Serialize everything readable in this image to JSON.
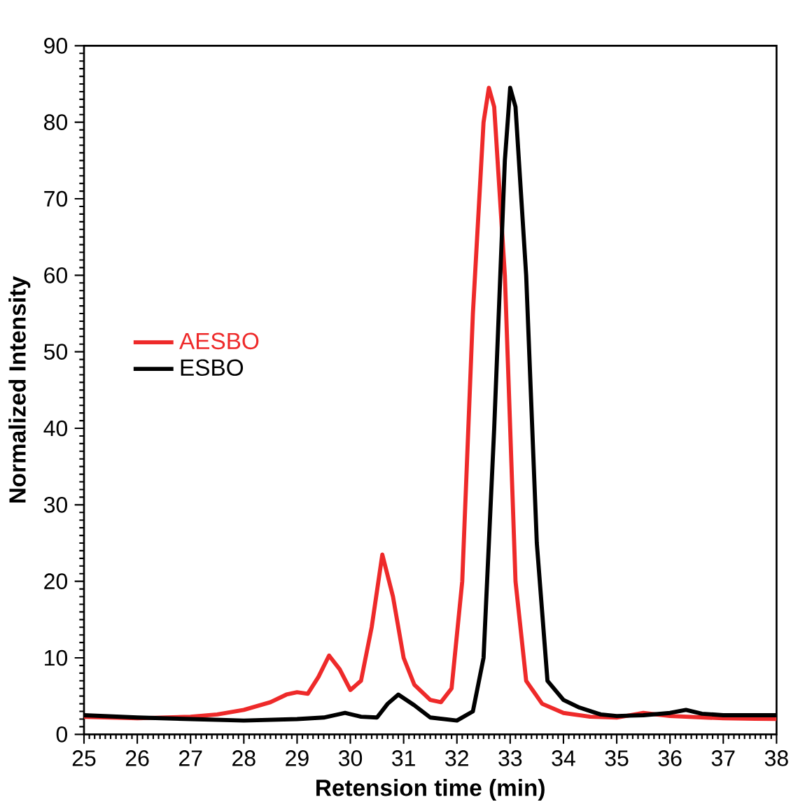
{
  "chart_data": {
    "type": "line",
    "xlabel": "Retension time (min)",
    "ylabel": "Normalized Intensity",
    "xlim": [
      25,
      38
    ],
    "xticks": [
      25,
      26,
      27,
      28,
      29,
      30,
      31,
      32,
      33,
      34,
      35,
      36,
      37,
      38
    ],
    "ylim": [
      0,
      90
    ],
    "yticks": [
      0,
      10,
      20,
      30,
      40,
      50,
      60,
      70,
      80,
      90
    ],
    "legend": "left",
    "grid": false,
    "marker": "none",
    "line_style": "solid",
    "series": [
      {
        "name": "AESBO",
        "color": "#ee2a2a",
        "x": [
          25,
          26,
          27,
          27.5,
          28,
          28.5,
          28.8,
          29.0,
          29.2,
          29.4,
          29.6,
          29.8,
          30.0,
          30.2,
          30.4,
          30.6,
          30.8,
          31.0,
          31.2,
          31.5,
          31.7,
          31.9,
          32.1,
          32.3,
          32.5,
          32.6,
          32.7,
          32.9,
          33.1,
          33.3,
          33.6,
          34,
          34.5,
          35,
          35.5,
          36,
          37,
          38
        ],
        "values": [
          2.3,
          2.1,
          2.3,
          2.6,
          3.2,
          4.2,
          5.2,
          5.5,
          5.3,
          7.5,
          10.3,
          8.5,
          5.8,
          7,
          14,
          23.5,
          18,
          10,
          6.5,
          4.5,
          4.2,
          6,
          20,
          55,
          80,
          84.5,
          82,
          60,
          20,
          7,
          4,
          2.8,
          2.3,
          2.2,
          2.8,
          2.4,
          2.1,
          2.0
        ]
      },
      {
        "name": "ESBO",
        "color": "#000000",
        "x": [
          25,
          26,
          27,
          28,
          29,
          29.5,
          29.9,
          30.2,
          30.5,
          30.7,
          30.9,
          31.2,
          31.5,
          32,
          32.3,
          32.5,
          32.7,
          32.9,
          33.0,
          33.1,
          33.3,
          33.5,
          33.7,
          34,
          34.3,
          34.7,
          35,
          35.5,
          36,
          36.3,
          36.6,
          37,
          38
        ],
        "values": [
          2.5,
          2.2,
          2.0,
          1.8,
          2.0,
          2.2,
          2.8,
          2.3,
          2.2,
          4,
          5.2,
          3.8,
          2.2,
          1.8,
          3,
          10,
          40,
          75,
          84.5,
          82,
          60,
          25,
          7,
          4.5,
          3.5,
          2.6,
          2.4,
          2.5,
          2.8,
          3.2,
          2.7,
          2.5,
          2.5
        ]
      }
    ]
  }
}
